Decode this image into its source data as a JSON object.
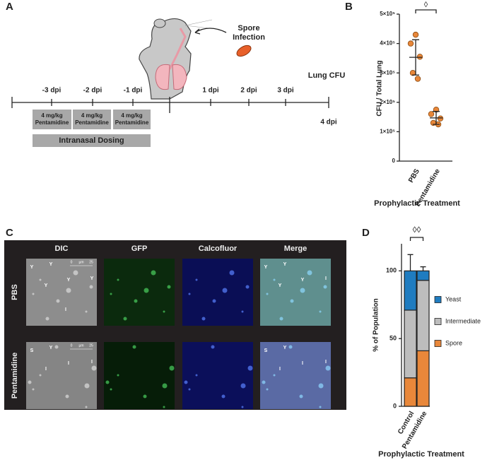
{
  "panels": [
    "A",
    "B",
    "C",
    "D"
  ],
  "timeline": {
    "pre_labels": [
      "-3 dpi",
      "-2 dpi",
      "-1 dpi"
    ],
    "post_labels": [
      "1 dpi",
      "2 dpi",
      "3 dpi"
    ],
    "end_label": "4 dpi",
    "endpoint": "Lung CFU",
    "infection": [
      "Spore",
      "Infection"
    ],
    "dose_boxes": [
      [
        "4 mg/kg",
        "Pentamidine"
      ],
      [
        "4 mg/kg",
        "Pentamidine"
      ],
      [
        "4 mg/kg",
        "Pentamidine"
      ]
    ],
    "dosing": "Intranasal Dosing"
  },
  "microscopy": {
    "columns": [
      "DIC",
      "GFP",
      "Calcofluor",
      "Merge"
    ],
    "rows": [
      "PBS",
      "Pentamidine"
    ],
    "scale_bar": [
      "0",
      "µm",
      "25"
    ],
    "annotations": [
      {
        "DIC": [
          "Y",
          "Y",
          "Y",
          "Y",
          "Y",
          "I"
        ],
        "Merge": [
          "Y",
          "Y",
          "Y",
          "Y",
          "I"
        ]
      },
      {
        "DIC": [
          "S",
          "Y",
          "I",
          "I",
          "I"
        ],
        "Merge": [
          "S",
          "Y",
          "I",
          "I",
          "I"
        ]
      }
    ]
  },
  "chart_data": [
    {
      "type": "scatter",
      "y_label": "CFU / Total Lung",
      "x_label": "Prophylactic Treatment",
      "categories": [
        "PBS",
        "Pentamidine"
      ],
      "points": [
        [
          430000,
          400000,
          355000,
          300000,
          280000
        ],
        [
          175000,
          160000,
          145000,
          130000,
          125000
        ]
      ],
      "means": [
        353000,
        147000
      ],
      "errors": [
        60000,
        22000
      ],
      "significance": "◊",
      "color": "#e8873a",
      "ylim": [
        0,
        500000
      ],
      "yticks": [
        0,
        {
          "value": 100000,
          "label": "1×10⁵"
        },
        {
          "value": 200000,
          "label": "2×10⁵"
        },
        {
          "value": 300000,
          "label": "3×10⁵"
        },
        {
          "value": 400000,
          "label": "4×10⁵"
        },
        {
          "value": 500000,
          "label": "5×10⁵"
        }
      ]
    },
    {
      "type": "bar",
      "stacked": true,
      "y_label": "% of Population",
      "x_label": "Prophylactic Treatment",
      "categories": [
        "Control",
        "Pentamidine"
      ],
      "significance": "◊◊",
      "series": [
        {
          "name": "Spore",
          "color": "#e8873a",
          "values": [
            21,
            41
          ],
          "errors": [
            10,
            8
          ]
        },
        {
          "name": "Intermediate",
          "color": "#bdbdbd",
          "values": [
            50,
            52
          ]
        },
        {
          "name": "Yeast",
          "color": "#1f7cc0",
          "values": [
            29,
            7
          ],
          "errors": [
            12,
            3
          ]
        }
      ],
      "ylim": [
        0,
        120
      ],
      "yticks": [
        0,
        50,
        100
      ]
    }
  ]
}
